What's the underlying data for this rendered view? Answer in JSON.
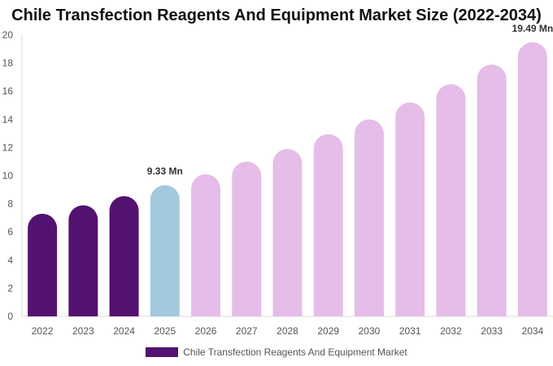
{
  "chart_data": {
    "type": "bar",
    "title": "Chile Transfection Reagents And Equipment Market Size (2022-2034)",
    "categories": [
      "2022",
      "2023",
      "2024",
      "2025",
      "2026",
      "2027",
      "2028",
      "2029",
      "2030",
      "2031",
      "2032",
      "2033",
      "2034"
    ],
    "series": [
      {
        "name": "Chile Transfection Reagents And Equipment Market",
        "values": [
          7.3,
          7.9,
          8.55,
          9.33,
          10.1,
          11.0,
          11.9,
          12.95,
          14.0,
          15.2,
          16.5,
          17.9,
          19.49
        ]
      }
    ],
    "bar_colors": [
      "#541270",
      "#541270",
      "#541270",
      "#a3c9de",
      "#e6bce8",
      "#e6bce8",
      "#e6bce8",
      "#e6bce8",
      "#e6bce8",
      "#e6bce8",
      "#e6bce8",
      "#e6bce8",
      "#e6bce8"
    ],
    "data_labels": [
      {
        "category": "2025",
        "text": "9.33 Mn"
      },
      {
        "category": "2034",
        "text": "19.49 Mn"
      }
    ],
    "ylim": [
      0,
      20
    ],
    "yticks": [
      0,
      2,
      4,
      6,
      8,
      10,
      12,
      14,
      16,
      18,
      20
    ],
    "grid": false,
    "legend_position": "bottom",
    "legend_color": "#541270",
    "xlabel": "",
    "ylabel": ""
  }
}
